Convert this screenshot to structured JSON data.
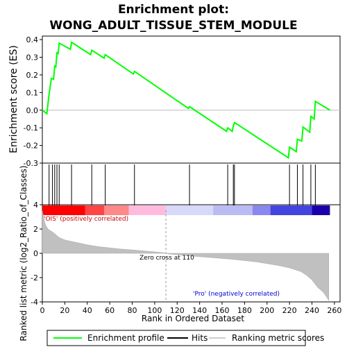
{
  "chart_data": {
    "type": "line",
    "title_line1": "Enrichment plot:",
    "title_line2": "WONG_ADULT_TISSUE_STEM_MODULE",
    "es_panel": {
      "ylabel": "Enrichment score (ES)",
      "ylim": [
        -0.3,
        0.42
      ],
      "yticks": [
        "0.4",
        "0.3",
        "0.2",
        "0.1",
        "0.0",
        "-0.1",
        "-0.2",
        "-0.3"
      ],
      "ytick_values": [
        0.4,
        0.3,
        0.2,
        0.1,
        0.0,
        -0.1,
        -0.2,
        -0.3
      ],
      "series": [
        {
          "name": "Enrichment profile",
          "color": "#00ff00",
          "x": [
            0,
            4,
            6,
            8,
            10,
            11,
            12,
            13,
            14,
            15,
            25,
            26,
            43,
            44,
            55,
            56,
            81,
            82,
            130,
            131,
            164,
            165,
            169,
            170,
            171,
            219,
            220,
            226,
            227,
            231,
            232,
            238,
            239,
            242,
            243,
            256
          ],
          "y": [
            0.0,
            -0.02,
            0.09,
            0.18,
            0.175,
            0.25,
            0.245,
            0.325,
            0.32,
            0.38,
            0.345,
            0.385,
            0.315,
            0.34,
            0.295,
            0.315,
            0.205,
            0.22,
            0.01,
            0.02,
            -0.12,
            -0.1,
            -0.12,
            -0.09,
            -0.07,
            -0.27,
            -0.21,
            -0.235,
            -0.165,
            -0.175,
            -0.095,
            -0.125,
            -0.035,
            -0.05,
            0.05,
            0.0
          ]
        }
      ]
    },
    "hits": [
      6,
      9,
      11,
      13,
      15,
      26,
      44,
      56,
      82,
      131,
      165,
      170,
      171,
      220,
      227,
      232,
      239,
      243
    ],
    "ranked_metric": {
      "ylabel": "Ranked list metric (log2_Ratio_of_Classes)",
      "ylim": [
        -4,
        4
      ],
      "yticks": [
        "4",
        "2",
        "0",
        "-2",
        "-4"
      ],
      "ytick_values": [
        4,
        2,
        0,
        -2,
        -4
      ],
      "x": [
        0,
        1,
        2,
        3,
        5,
        10,
        15,
        20,
        30,
        40,
        50,
        60,
        70,
        80,
        90,
        100,
        108,
        110,
        112,
        130,
        150,
        170,
        190,
        200,
        210,
        220,
        230,
        235,
        240,
        245,
        250,
        253,
        255
      ],
      "values": [
        3.5,
        3.1,
        2.6,
        2.3,
        2.0,
        1.7,
        1.3,
        1.1,
        0.9,
        0.7,
        0.55,
        0.45,
        0.35,
        0.28,
        0.2,
        0.12,
        0.05,
        0.0,
        -0.05,
        -0.2,
        -0.35,
        -0.5,
        -0.7,
        -0.85,
        -1.0,
        -1.2,
        -1.5,
        -1.8,
        -2.2,
        -2.8,
        -3.2,
        -3.6,
        -3.9
      ],
      "zero_cross_label": "Zero cross at 110",
      "pos_label": "'OIS' (positively correlated)",
      "neg_label": "'Pro' (negatively correlated)",
      "pos_color": "#cc0000",
      "neg_color": "#0000cc"
    },
    "xaxis": {
      "label": "Rank in Ordered Dataset",
      "xlim": [
        0,
        265
      ],
      "ticks": [
        "0",
        "20",
        "40",
        "60",
        "80",
        "100",
        "120",
        "140",
        "160",
        "180",
        "200",
        "220",
        "240",
        "260"
      ],
      "tick_values": [
        0,
        20,
        40,
        60,
        80,
        100,
        120,
        140,
        160,
        180,
        200,
        220,
        240,
        260
      ]
    },
    "heat_bar": {
      "x_end": 256,
      "segments": [
        {
          "start": 0,
          "end": 38,
          "color": "#ff0000"
        },
        {
          "start": 38,
          "end": 55,
          "color": "#ff4444"
        },
        {
          "start": 55,
          "end": 77,
          "color": "#ff8888"
        },
        {
          "start": 77,
          "end": 110,
          "color": "#ffbbdd"
        },
        {
          "start": 110,
          "end": 152,
          "color": "#d8d8f8"
        },
        {
          "start": 152,
          "end": 187,
          "color": "#bbbbf4"
        },
        {
          "start": 187,
          "end": 203,
          "color": "#8888ee"
        },
        {
          "start": 203,
          "end": 240,
          "color": "#4444e0"
        },
        {
          "start": 240,
          "end": 256,
          "color": "#1a00aa"
        }
      ]
    },
    "legend": [
      {
        "label": "Enrichment profile",
        "color": "#00ff00"
      },
      {
        "label": "Hits",
        "color": "#000000"
      },
      {
        "label": "Ranking metric scores",
        "color": "#cccccc"
      }
    ]
  }
}
